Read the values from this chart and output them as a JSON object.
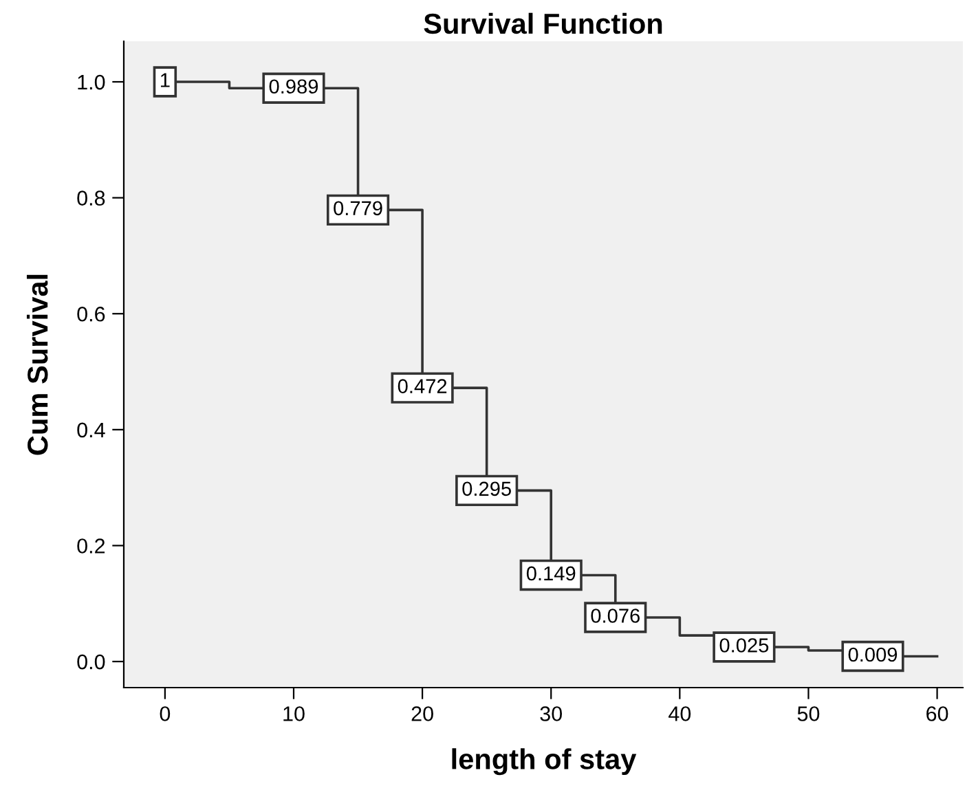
{
  "chart_data": {
    "type": "step",
    "title": "Survival Function",
    "xlabel": "length of stay",
    "ylabel": "Cum Survival",
    "x": [
      0,
      5,
      10,
      15,
      20,
      25,
      30,
      35,
      40,
      45,
      50,
      55,
      60
    ],
    "series": [
      {
        "color": "#333333",
        "values": [
          1,
          0.989,
          0.989,
          0.779,
          0.472,
          0.295,
          0.149,
          0.076,
          0.045,
          0.025,
          0.019,
          0.009,
          0.009
        ],
        "value_labels": [
          "1",
          null,
          "0.989",
          "0.779",
          "0.472",
          "0.295",
          "0.149",
          "0.076",
          null,
          "0.025",
          null,
          "0.009",
          null
        ]
      }
    ],
    "xlim": [
      -3.2,
      62
    ],
    "ylim": [
      -0.045,
      1.07
    ],
    "xticks": [
      0,
      10,
      20,
      30,
      40,
      50,
      60
    ],
    "yticks": [
      {
        "value": 0,
        "label": "0.0"
      },
      0.2,
      0.4,
      0.6,
      0.8,
      {
        "value": 1,
        "label": "1.0"
      }
    ],
    "grid": false,
    "legend": false
  }
}
